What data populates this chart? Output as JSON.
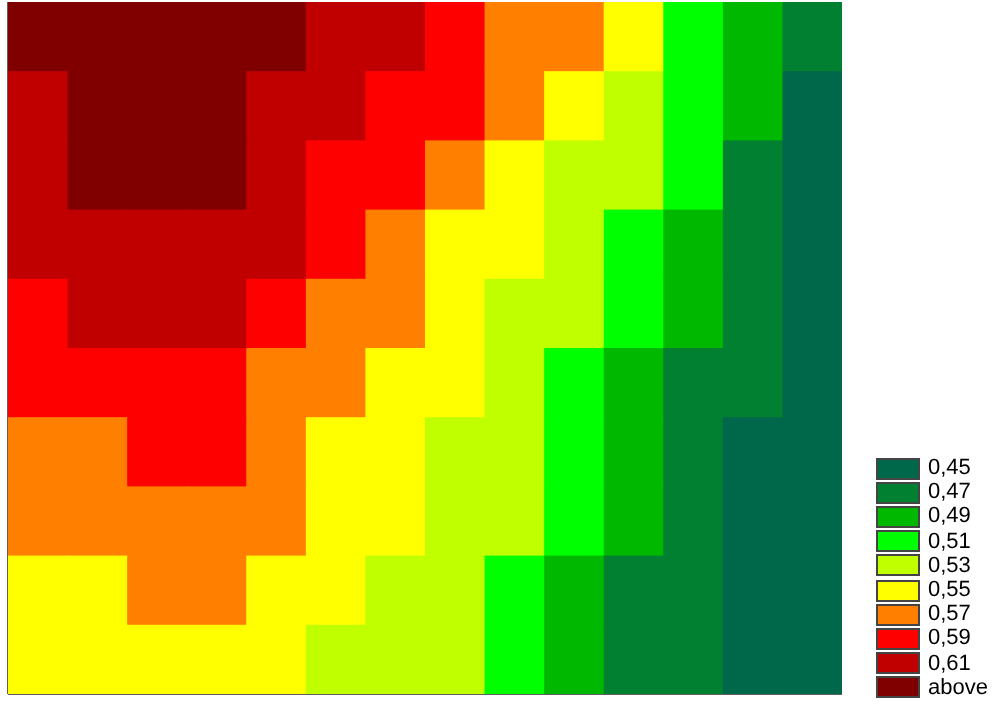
{
  "chart_data": {
    "type": "heatmap",
    "categories": [
      null,
      null,
      null,
      null,
      null,
      null,
      null,
      null,
      null,
      null,
      null,
      null,
      null,
      null
    ],
    "y_categories": [
      null,
      null,
      null,
      null,
      null,
      null,
      null,
      null,
      null,
      null
    ],
    "cells": [
      [
        0.63,
        0.63,
        0.63,
        0.63,
        0.63,
        0.61,
        0.61,
        0.59,
        0.57,
        0.57,
        0.55,
        0.51,
        0.49,
        0.47
      ],
      [
        0.61,
        0.63,
        0.63,
        0.63,
        0.61,
        0.61,
        0.59,
        0.59,
        0.57,
        0.55,
        0.53,
        0.51,
        0.49,
        0.45
      ],
      [
        0.61,
        0.63,
        0.63,
        0.63,
        0.61,
        0.59,
        0.59,
        0.57,
        0.55,
        0.53,
        0.53,
        0.51,
        0.47,
        0.45
      ],
      [
        0.61,
        0.61,
        0.61,
        0.61,
        0.61,
        0.59,
        0.57,
        0.55,
        0.55,
        0.53,
        0.51,
        0.49,
        0.47,
        0.45
      ],
      [
        0.59,
        0.61,
        0.61,
        0.61,
        0.59,
        0.57,
        0.57,
        0.55,
        0.53,
        0.53,
        0.51,
        0.49,
        0.47,
        0.45
      ],
      [
        0.59,
        0.59,
        0.59,
        0.59,
        0.57,
        0.57,
        0.55,
        0.55,
        0.53,
        0.51,
        0.49,
        0.47,
        0.47,
        0.45
      ],
      [
        0.57,
        0.57,
        0.59,
        0.59,
        0.57,
        0.55,
        0.55,
        0.53,
        0.53,
        0.51,
        0.49,
        0.47,
        0.45,
        0.45
      ],
      [
        0.57,
        0.57,
        0.57,
        0.57,
        0.57,
        0.55,
        0.55,
        0.53,
        0.53,
        0.51,
        0.49,
        0.47,
        0.45,
        0.45
      ],
      [
        0.55,
        0.55,
        0.57,
        0.57,
        0.55,
        0.55,
        0.53,
        0.53,
        0.51,
        0.49,
        0.47,
        0.47,
        0.45,
        0.45
      ],
      [
        0.55,
        0.55,
        0.55,
        0.55,
        0.55,
        0.53,
        0.53,
        0.53,
        0.51,
        0.49,
        0.47,
        0.47,
        0.45,
        0.45
      ]
    ],
    "cticks": [
      {
        "value": 0.45,
        "label": "0,45"
      },
      {
        "value": 0.47,
        "label": "0,47"
      },
      {
        "value": 0.49,
        "label": "0,49"
      },
      {
        "value": 0.51,
        "label": "0,51"
      },
      {
        "value": 0.53,
        "label": "0,53"
      },
      {
        "value": 0.55,
        "label": "0,55"
      },
      {
        "value": 0.57,
        "label": "0,57"
      },
      {
        "value": 0.59,
        "label": "0,59"
      },
      {
        "value": 0.61,
        "label": "0,61"
      },
      {
        "value": 0.63,
        "label": "above"
      }
    ],
    "colors": [
      "#00684a",
      "#008030",
      "#00b800",
      "#00ff00",
      "#c0ff00",
      "#ffff00",
      "#ff8000",
      "#ff0000",
      "#c00000",
      "#800000"
    ],
    "tick_labels": false
  }
}
